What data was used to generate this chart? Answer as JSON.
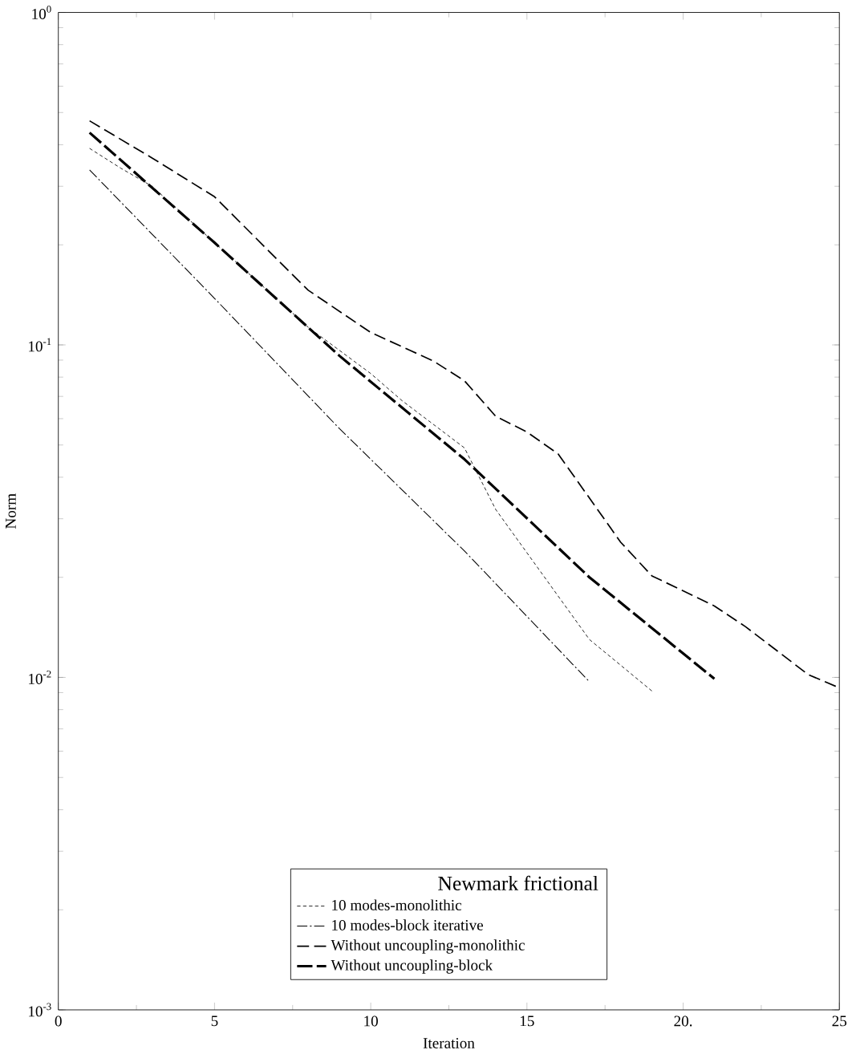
{
  "chart_data": {
    "type": "line",
    "xlabel": "Iteration",
    "ylabel": "Norm",
    "legend_title": "Newmark frictional",
    "log": "y",
    "legend": "bottom",
    "grid": false,
    "marker": "none",
    "xlim": [
      0,
      25
    ],
    "ylim": [
      0.001,
      1
    ],
    "xticks": [
      0,
      5,
      10,
      15,
      {
        "value": 20,
        "label": "20."
      },
      25
    ],
    "yticks": [
      {
        "value": 0.001,
        "label": "10$^{-3}$"
      },
      {
        "value": 0.01,
        "label": "10$^{-2}$"
      },
      {
        "value": 0.1,
        "label": "10$^{-1}$"
      },
      {
        "value": 1,
        "label": "10$^{0}$"
      }
    ],
    "series": [
      {
        "name": "10 modes-monolithic",
        "color": "#000000",
        "line_style": "dotted",
        "x": [
          1,
          2,
          3,
          8,
          10,
          11,
          13,
          14,
          17,
          19
        ],
        "values": [
          0.39,
          0.34,
          0.3,
          0.113,
          0.082,
          0.068,
          0.049,
          0.032,
          0.013,
          0.0091
        ]
      },
      {
        "name": "10 modes-block iterative",
        "color": "#000000",
        "line_style": "dashdot",
        "x": [
          1,
          5,
          9,
          13,
          17
        ],
        "values": [
          0.336,
          0.138,
          0.056,
          0.024,
          0.0097
        ]
      },
      {
        "name": "Without uncoupling-monolithic",
        "color": "#000000",
        "line_style": "dashed",
        "x": [
          1,
          3,
          5,
          7,
          8,
          10,
          12,
          13,
          14,
          15,
          16,
          18,
          19,
          21,
          22,
          24,
          25
        ],
        "values": [
          0.472,
          0.365,
          0.279,
          0.181,
          0.146,
          0.109,
          0.0895,
          0.078,
          0.061,
          0.0547,
          0.047,
          0.0255,
          0.0202,
          0.0164,
          0.0142,
          0.0102,
          0.0093
        ]
      },
      {
        "name": "Without uncoupling-block",
        "color": "#000000",
        "line_style": "thick dashed",
        "x": [
          1,
          5,
          9,
          13,
          17,
          21
        ],
        "values": [
          0.435,
          0.203,
          0.0927,
          0.0453,
          0.02,
          0.0099
        ]
      }
    ]
  }
}
